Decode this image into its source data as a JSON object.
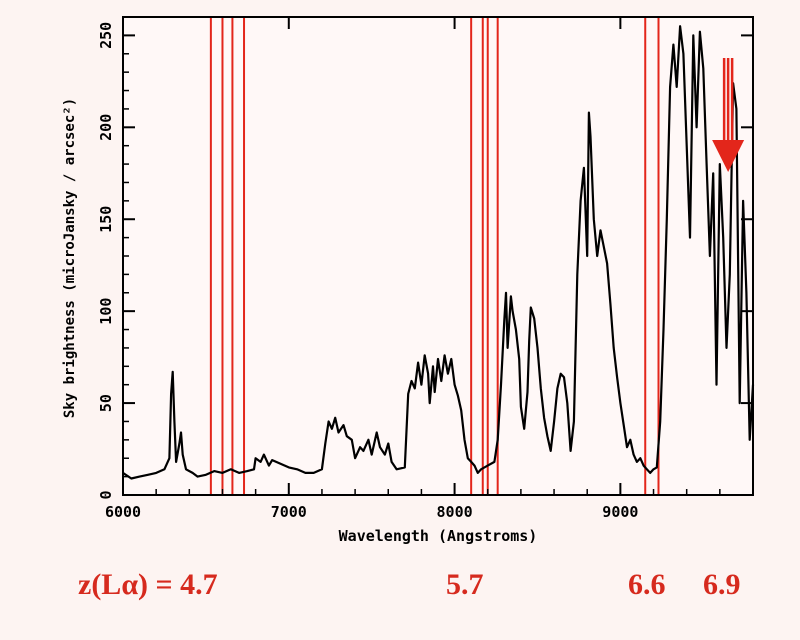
{
  "chart_data": {
    "type": "line",
    "xlabel": "Wavelength (Angstroms)",
    "ylabel": "Sky brightness (microJansky / arcsec²)",
    "xlim": [
      6000,
      9800
    ],
    "ylim": [
      0,
      260
    ],
    "xticks": [
      6000,
      7000,
      8000,
      9000
    ],
    "yticks": [
      0,
      50,
      100,
      150,
      200,
      250
    ],
    "grid": false,
    "series": [
      {
        "values": [
          [
            6000,
            12
          ],
          [
            6050,
            9
          ],
          [
            6100,
            10
          ],
          [
            6150,
            11
          ],
          [
            6200,
            12
          ],
          [
            6250,
            14
          ],
          [
            6280,
            20
          ],
          [
            6290,
            55
          ],
          [
            6300,
            67
          ],
          [
            6310,
            40
          ],
          [
            6320,
            18
          ],
          [
            6340,
            28
          ],
          [
            6350,
            34
          ],
          [
            6360,
            22
          ],
          [
            6380,
            14
          ],
          [
            6420,
            12
          ],
          [
            6450,
            10
          ],
          [
            6500,
            11
          ],
          [
            6550,
            13
          ],
          [
            6600,
            12
          ],
          [
            6650,
            14
          ],
          [
            6700,
            12
          ],
          [
            6750,
            13
          ],
          [
            6790,
            14
          ],
          [
            6800,
            20
          ],
          [
            6830,
            18
          ],
          [
            6850,
            22
          ],
          [
            6880,
            16
          ],
          [
            6900,
            19
          ],
          [
            6950,
            17
          ],
          [
            7000,
            15
          ],
          [
            7050,
            14
          ],
          [
            7100,
            12
          ],
          [
            7150,
            12
          ],
          [
            7200,
            14
          ],
          [
            7220,
            28
          ],
          [
            7240,
            40
          ],
          [
            7260,
            36
          ],
          [
            7280,
            42
          ],
          [
            7300,
            34
          ],
          [
            7330,
            38
          ],
          [
            7350,
            32
          ],
          [
            7380,
            30
          ],
          [
            7400,
            20
          ],
          [
            7430,
            26
          ],
          [
            7450,
            24
          ],
          [
            7480,
            30
          ],
          [
            7500,
            22
          ],
          [
            7530,
            34
          ],
          [
            7550,
            26
          ],
          [
            7580,
            22
          ],
          [
            7600,
            28
          ],
          [
            7620,
            18
          ],
          [
            7650,
            14
          ],
          [
            7700,
            15
          ],
          [
            7720,
            55
          ],
          [
            7740,
            62
          ],
          [
            7760,
            58
          ],
          [
            7780,
            72
          ],
          [
            7800,
            60
          ],
          [
            7820,
            76
          ],
          [
            7840,
            66
          ],
          [
            7850,
            50
          ],
          [
            7870,
            70
          ],
          [
            7880,
            56
          ],
          [
            7900,
            74
          ],
          [
            7920,
            62
          ],
          [
            7940,
            76
          ],
          [
            7960,
            66
          ],
          [
            7980,
            74
          ],
          [
            8000,
            60
          ],
          [
            8020,
            54
          ],
          [
            8040,
            46
          ],
          [
            8060,
            30
          ],
          [
            8080,
            20
          ],
          [
            8100,
            18
          ],
          [
            8120,
            16
          ],
          [
            8140,
            12
          ],
          [
            8160,
            14
          ],
          [
            8200,
            16
          ],
          [
            8240,
            18
          ],
          [
            8260,
            30
          ],
          [
            8280,
            60
          ],
          [
            8300,
            95
          ],
          [
            8310,
            110
          ],
          [
            8320,
            80
          ],
          [
            8340,
            108
          ],
          [
            8350,
            100
          ],
          [
            8370,
            90
          ],
          [
            8390,
            74
          ],
          [
            8400,
            48
          ],
          [
            8420,
            36
          ],
          [
            8440,
            56
          ],
          [
            8450,
            84
          ],
          [
            8460,
            102
          ],
          [
            8480,
            96
          ],
          [
            8500,
            80
          ],
          [
            8520,
            58
          ],
          [
            8540,
            42
          ],
          [
            8560,
            32
          ],
          [
            8580,
            24
          ],
          [
            8600,
            40
          ],
          [
            8620,
            58
          ],
          [
            8640,
            66
          ],
          [
            8660,
            64
          ],
          [
            8680,
            50
          ],
          [
            8700,
            24
          ],
          [
            8720,
            40
          ],
          [
            8740,
            120
          ],
          [
            8760,
            160
          ],
          [
            8780,
            178
          ],
          [
            8800,
            130
          ],
          [
            8810,
            208
          ],
          [
            8820,
            195
          ],
          [
            8840,
            150
          ],
          [
            8860,
            130
          ],
          [
            8880,
            144
          ],
          [
            8900,
            135
          ],
          [
            8920,
            126
          ],
          [
            8940,
            104
          ],
          [
            8960,
            80
          ],
          [
            8980,
            64
          ],
          [
            9000,
            50
          ],
          [
            9020,
            38
          ],
          [
            9040,
            26
          ],
          [
            9060,
            30
          ],
          [
            9080,
            22
          ],
          [
            9100,
            18
          ],
          [
            9120,
            20
          ],
          [
            9140,
            16
          ],
          [
            9160,
            14
          ],
          [
            9180,
            12
          ],
          [
            9200,
            14
          ],
          [
            9220,
            15
          ],
          [
            9240,
            40
          ],
          [
            9260,
            90
          ],
          [
            9280,
            150
          ],
          [
            9300,
            222
          ],
          [
            9320,
            245
          ],
          [
            9340,
            222
          ],
          [
            9360,
            255
          ],
          [
            9380,
            240
          ],
          [
            9400,
            190
          ],
          [
            9420,
            140
          ],
          [
            9440,
            250
          ],
          [
            9460,
            200
          ],
          [
            9480,
            252
          ],
          [
            9500,
            232
          ],
          [
            9520,
            180
          ],
          [
            9540,
            130
          ],
          [
            9560,
            175
          ],
          [
            9580,
            60
          ],
          [
            9600,
            180
          ],
          [
            9620,
            140
          ],
          [
            9640,
            80
          ],
          [
            9660,
            120
          ],
          [
            9680,
            224
          ],
          [
            9700,
            210
          ],
          [
            9720,
            50
          ],
          [
            9740,
            160
          ],
          [
            9760,
            110
          ],
          [
            9780,
            30
          ],
          [
            9800,
            60
          ]
        ]
      }
    ],
    "marker_lines": [
      6530,
      6600,
      6660,
      6730,
      8100,
      8170,
      8200,
      8260,
      9150,
      9230
    ],
    "arrow_x": 9650,
    "redshift_labels": [
      "z(Lα) = 4.7",
      "5.7",
      "6.6",
      "6.9"
    ],
    "colors": {
      "series": "#000000",
      "marker": "#e3261b",
      "label": "#d62a1e"
    }
  }
}
